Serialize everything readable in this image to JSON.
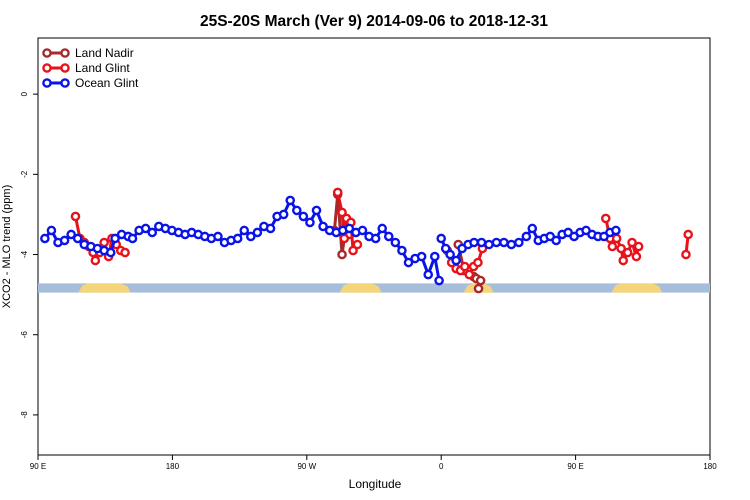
{
  "chart_data": {
    "type": "line",
    "title": "25S-20S March (Ver 9)   2014-09-06 to 2018-12-31",
    "xlabel": "Longitude",
    "ylabel": "XCO2 - MLO trend (ppm)",
    "xlim": [
      90,
      540
    ],
    "ylim": [
      -9,
      1.4
    ],
    "xticks": [
      {
        "value": 90,
        "label": "90 E"
      },
      {
        "value": 180,
        "label": "180"
      },
      {
        "value": 270,
        "label": "90 W"
      },
      {
        "value": 360,
        "label": "0"
      },
      {
        "value": 450,
        "label": "90 E"
      },
      {
        "value": 540,
        "label": "180"
      }
    ],
    "yticks": [
      0,
      -2,
      -4,
      -6,
      -8
    ],
    "legend_position": "top-left",
    "land_band": {
      "y_range": [
        -4.95,
        -4.72
      ],
      "ocean_color": "#a6bddb",
      "land_color": "#f5d57a",
      "land_segments": [
        [
          117,
          152
        ],
        [
          292,
          320
        ],
        [
          375,
          395
        ],
        [
          474,
          508
        ]
      ]
    },
    "series": [
      {
        "name": "Land Nadir",
        "color": "#a52a2a",
        "segments": [
          [
            [
              288.5,
              -3.4
            ],
            [
              290.7,
              -2.5
            ],
            [
              293.6,
              -4.0
            ],
            [
              296.6,
              -3.2
            ],
            [
              298.8,
              -3.5
            ]
          ],
          [
            [
              371.4,
              -3.75
            ],
            [
              375.3,
              -4.4
            ],
            [
              381.7,
              -4.55
            ],
            [
              383.5,
              -4.6
            ]
          ],
          [
            [
              385.0,
              -4.85
            ],
            [
              386.4,
              -4.65
            ]
          ]
        ]
      },
      {
        "name": "Land Glint",
        "color": "#e8121b",
        "segments": [
          [
            [
              115.1,
              -3.05
            ],
            [
              118.1,
              -3.6
            ],
            [
              121.0,
              -3.7
            ],
            [
              124.0,
              -3.8
            ],
            [
              126.9,
              -3.95
            ],
            [
              128.4,
              -4.15
            ],
            [
              131.4,
              -3.95
            ],
            [
              134.3,
              -3.7
            ],
            [
              137.3,
              -4.05
            ],
            [
              139.5,
              -3.6
            ],
            [
              142.4,
              -3.75
            ],
            [
              145.4,
              -3.9
            ],
            [
              148.3,
              -3.95
            ]
          ],
          [
            [
              290.7,
              -2.45
            ],
            [
              293.6,
              -2.95
            ],
            [
              295.1,
              -3.6
            ],
            [
              296.6,
              -3.1
            ],
            [
              299.5,
              -3.2
            ],
            [
              301.0,
              -3.9
            ],
            [
              303.9,
              -3.75
            ]
          ],
          [
            [
              364.1,
              -3.9
            ],
            [
              367.0,
              -4.2
            ],
            [
              370.0,
              -4.35
            ],
            [
              372.9,
              -4.4
            ],
            [
              375.8,
              -4.3
            ],
            [
              378.8,
              -4.5
            ],
            [
              381.7,
              -4.3
            ],
            [
              384.6,
              -4.2
            ],
            [
              387.6,
              -3.85
            ]
          ],
          [
            [
              470.2,
              -3.1
            ],
            [
              473.1,
              -3.6
            ],
            [
              474.6,
              -3.8
            ],
            [
              477.5,
              -3.6
            ],
            [
              480.5,
              -3.85
            ],
            [
              481.9,
              -4.15
            ],
            [
              484.9,
              -3.95
            ],
            [
              487.8,
              -3.7
            ],
            [
              490.7,
              -4.05
            ],
            [
              492.2,
              -3.8
            ]
          ],
          [
            [
              523.9,
              -4.0
            ],
            [
              525.4,
              -3.5
            ]
          ]
        ]
      },
      {
        "name": "Ocean Glint",
        "color": "#0a14e6",
        "segments": [
          [
            [
              94.6,
              -3.6
            ],
            [
              99.0,
              -3.4
            ],
            [
              103.4,
              -3.7
            ],
            [
              107.8,
              -3.65
            ],
            [
              112.2,
              -3.5
            ],
            [
              116.6,
              -3.6
            ],
            [
              121.0,
              -3.75
            ],
            [
              125.4,
              -3.8
            ],
            [
              129.8,
              -3.85
            ],
            [
              134.3,
              -3.9
            ],
            [
              138.7,
              -3.95
            ],
            [
              141.6,
              -3.6
            ],
            [
              146.0,
              -3.5
            ],
            [
              150.4,
              -3.55
            ],
            [
              153.3,
              -3.6
            ],
            [
              157.7,
              -3.4
            ],
            [
              162.1,
              -3.35
            ],
            [
              166.5,
              -3.45
            ],
            [
              170.9,
              -3.3
            ],
            [
              175.3,
              -3.35
            ],
            [
              179.7,
              -3.4
            ],
            [
              184.1,
              -3.45
            ],
            [
              188.5,
              -3.5
            ],
            [
              192.9,
              -3.45
            ],
            [
              197.3,
              -3.5
            ],
            [
              201.7,
              -3.55
            ],
            [
              206.1,
              -3.6
            ],
            [
              210.5,
              -3.55
            ],
            [
              214.9,
              -3.7
            ],
            [
              219.3,
              -3.65
            ],
            [
              223.7,
              -3.6
            ],
            [
              228.1,
              -3.4
            ],
            [
              232.5,
              -3.55
            ],
            [
              236.9,
              -3.45
            ],
            [
              241.3,
              -3.3
            ],
            [
              245.7,
              -3.35
            ],
            [
              250.1,
              -3.05
            ],
            [
              254.5,
              -3.0
            ],
            [
              258.9,
              -2.65
            ],
            [
              263.3,
              -2.9
            ],
            [
              267.7,
              -3.05
            ],
            [
              272.1,
              -3.2
            ],
            [
              276.5,
              -2.9
            ],
            [
              280.9,
              -3.3
            ],
            [
              285.3,
              -3.4
            ],
            [
              289.7,
              -3.45
            ],
            [
              294.1,
              -3.4
            ],
            [
              298.5,
              -3.35
            ],
            [
              302.9,
              -3.45
            ],
            [
              307.3,
              -3.4
            ],
            [
              311.7,
              -3.55
            ],
            [
              316.1,
              -3.6
            ],
            [
              320.5,
              -3.35
            ],
            [
              324.9,
              -3.55
            ],
            [
              329.3,
              -3.7
            ],
            [
              333.7,
              -3.9
            ],
            [
              338.1,
              -4.2
            ],
            [
              342.5,
              -4.1
            ],
            [
              346.9,
              -4.05
            ],
            [
              351.3,
              -4.5
            ],
            [
              355.7,
              -4.05
            ],
            [
              358.6,
              -4.65
            ]
          ],
          [
            [
              360.0,
              -3.6
            ],
            [
              363.0,
              -3.85
            ],
            [
              366.0,
              -4.0
            ],
            [
              370.0,
              -4.15
            ],
            [
              374.0,
              -3.85
            ],
            [
              378.0,
              -3.75
            ],
            [
              382.0,
              -3.7
            ],
            [
              387.0,
              -3.7
            ],
            [
              392.0,
              -3.75
            ],
            [
              397.0,
              -3.7
            ],
            [
              402.0,
              -3.7
            ],
            [
              407.0,
              -3.75
            ],
            [
              412.0,
              -3.7
            ],
            [
              417.0,
              -3.55
            ],
            [
              421.0,
              -3.35
            ],
            [
              425.0,
              -3.65
            ],
            [
              429.0,
              -3.6
            ],
            [
              433.0,
              -3.55
            ],
            [
              437.0,
              -3.65
            ],
            [
              441.0,
              -3.5
            ],
            [
              445.0,
              -3.45
            ],
            [
              449.0,
              -3.55
            ],
            [
              453.0,
              -3.45
            ],
            [
              457.0,
              -3.4
            ],
            [
              461.0,
              -3.5
            ],
            [
              465.0,
              -3.55
            ],
            [
              469.0,
              -3.55
            ],
            [
              473.0,
              -3.45
            ],
            [
              477.0,
              -3.4
            ]
          ]
        ]
      }
    ]
  }
}
